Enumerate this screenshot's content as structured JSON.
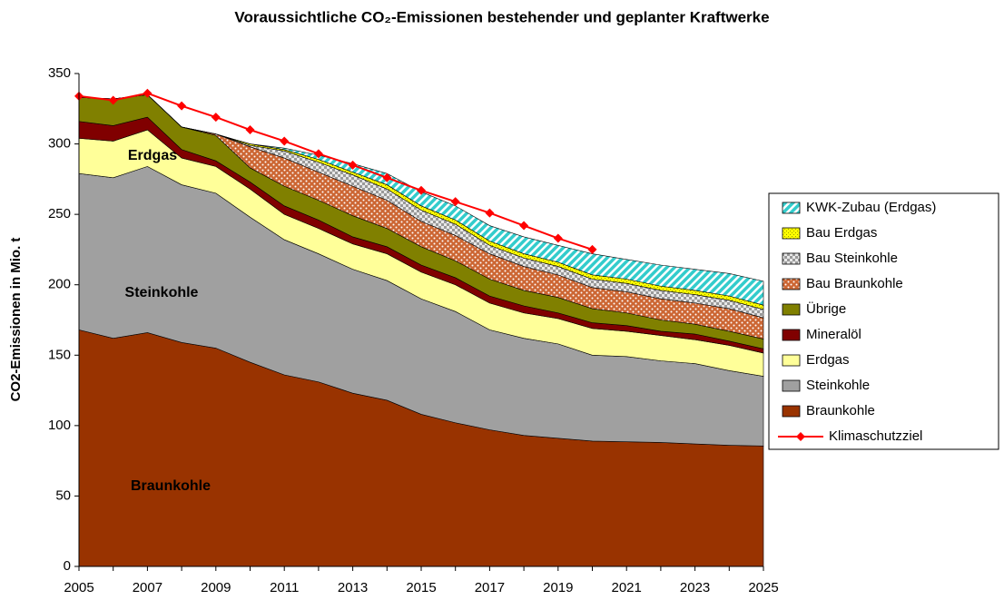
{
  "chart_data": {
    "type": "area",
    "stacked": true,
    "title": "Voraussichtliche CO₂-Emissionen bestehender und geplanter Kraftwerke",
    "y_label": "CO2-Emissionen in Mio. t",
    "x": [
      2005,
      2006,
      2007,
      2008,
      2009,
      2010,
      2011,
      2012,
      2013,
      2014,
      2015,
      2016,
      2017,
      2018,
      2019,
      2020,
      2021,
      2022,
      2023,
      2024,
      2025
    ],
    "xlim": [
      2005,
      2025
    ],
    "xticks": [
      2005,
      2007,
      2009,
      2011,
      2013,
      2015,
      2017,
      2019,
      2021,
      2023,
      2025
    ],
    "ylim": [
      0,
      350
    ],
    "yticks": [
      0,
      50,
      100,
      150,
      200,
      250,
      300,
      350
    ],
    "grid": false,
    "legend": "right",
    "annotations": [
      "Erdgas",
      "Steinkohle",
      "Braunkohle"
    ],
    "series": [
      {
        "name": "Braunkohle",
        "color": "#993300",
        "values": [
          168,
          162,
          166,
          159,
          155,
          145,
          136,
          131,
          123,
          118,
          108,
          102,
          97,
          93,
          91,
          89,
          88.5,
          88,
          87,
          86,
          85.5
        ]
      },
      {
        "name": "Steinkohle",
        "color": "#a0a0a0",
        "values": [
          111,
          114,
          118,
          112,
          110,
          103,
          96,
          91,
          88,
          85,
          82,
          79,
          71,
          69,
          67,
          61,
          60.5,
          58,
          57,
          53,
          49.5
        ]
      },
      {
        "name": "Erdgas",
        "color": "#ffff99",
        "values": [
          25,
          26,
          26,
          19,
          19,
          20,
          18,
          18,
          18,
          19,
          19,
          19,
          19,
          18,
          18,
          19,
          18,
          18,
          17,
          18,
          16.5
        ]
      },
      {
        "name": "Mineralöl",
        "color": "#800000",
        "values": [
          12,
          11,
          9,
          6,
          4,
          5,
          6,
          6,
          5,
          5,
          5,
          5,
          5,
          5,
          4,
          4,
          4,
          3,
          4,
          3,
          3
        ]
      },
      {
        "name": "Übrige",
        "color": "#808000",
        "values": [
          17,
          19,
          16,
          16,
          18,
          10,
          14,
          14,
          15,
          13,
          13,
          12,
          12,
          11,
          11,
          10,
          9,
          8,
          7,
          7,
          7
        ]
      },
      {
        "name": "Bau Braunkohle",
        "color": "#cc6633",
        "pattern": "dots",
        "values": [
          0,
          0,
          0,
          0,
          1,
          15,
          20,
          20,
          21,
          20,
          18,
          18,
          18,
          17,
          16,
          15,
          15,
          15,
          15,
          16,
          15
        ]
      },
      {
        "name": "Bau Steinkohle",
        "color": "#c0c0c0",
        "pattern": "checker",
        "values": [
          0,
          0,
          0,
          0,
          0,
          1,
          5,
          7,
          8,
          8,
          8,
          8,
          6,
          6,
          6,
          6,
          6,
          6,
          6,
          6,
          6
        ]
      },
      {
        "name": "Bau Erdgas",
        "color": "#ffff00",
        "pattern": "dotsfine",
        "values": [
          0,
          0,
          0,
          0,
          0,
          1,
          1,
          2,
          2,
          3,
          3,
          3,
          3,
          3,
          3,
          3,
          3,
          3,
          3,
          3,
          3
        ]
      },
      {
        "name": "KWK-Zubau (Erdgas)",
        "color": "#33cccc",
        "pattern": "hatch",
        "values": [
          0,
          0,
          0,
          0,
          0,
          0,
          1,
          3,
          6,
          8,
          10,
          10,
          11,
          12,
          12,
          15,
          14,
          15,
          15,
          16,
          17
        ]
      },
      {
        "name": "Klimaschutzziel",
        "type": "line",
        "color": "#ff0000",
        "values": [
          334,
          331,
          336,
          327,
          319,
          310,
          302,
          293,
          285,
          276,
          267,
          259,
          251,
          242,
          233,
          225,
          null,
          null,
          null,
          null,
          null
        ]
      }
    ]
  }
}
